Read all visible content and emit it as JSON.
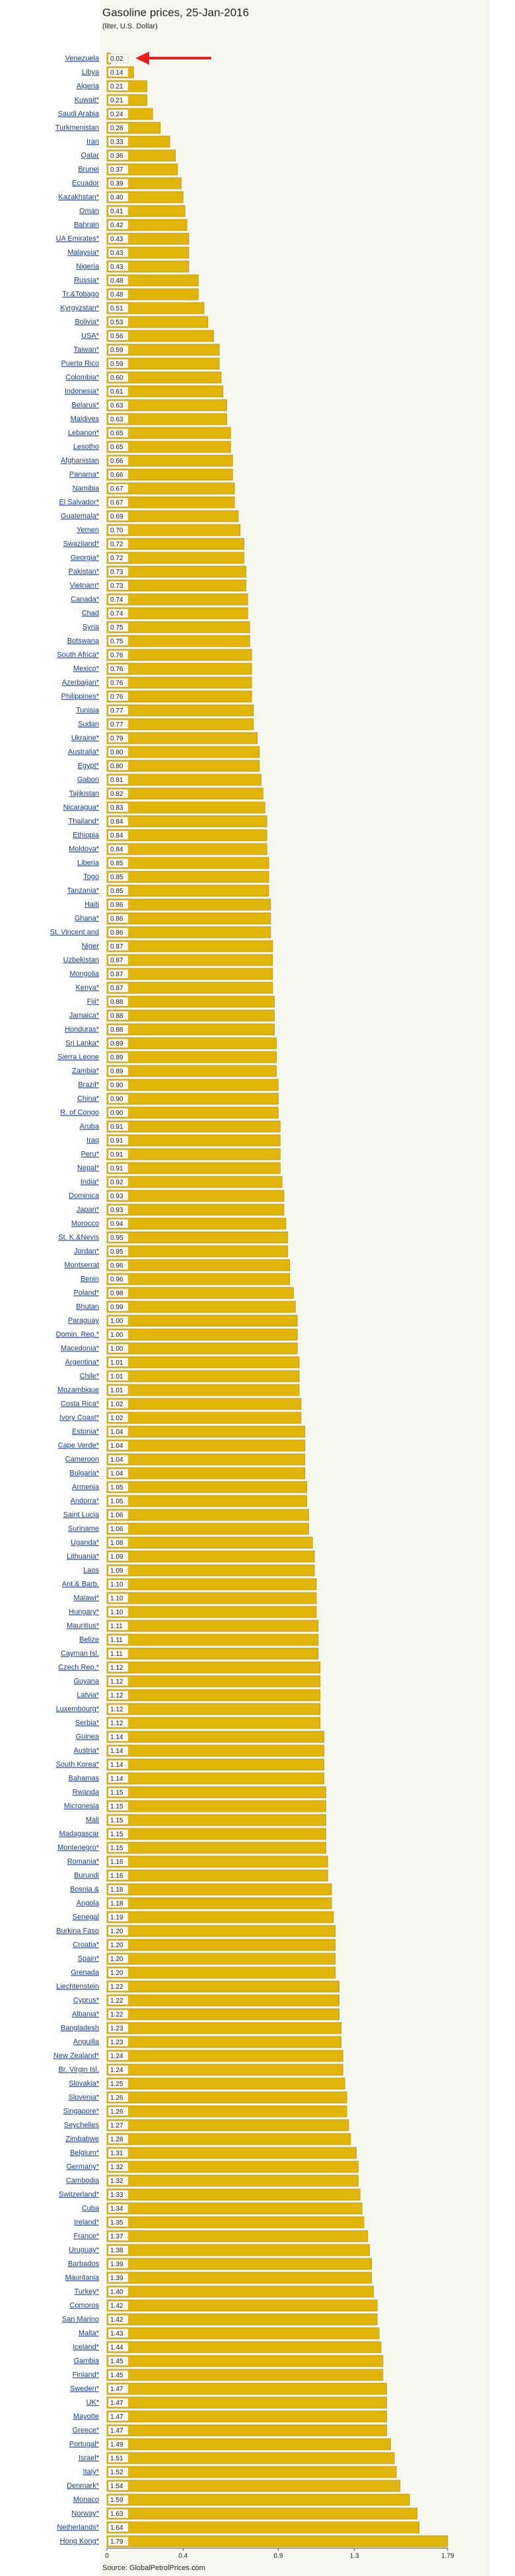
{
  "chart_data": {
    "type": "barh",
    "title": "Gasoline prices, 25-Jan-2016",
    "subtitle": "(liter, U.S. Dollar)",
    "source": "Source: GlobalPetrolPrices.com",
    "color": "#e2b50a",
    "categories": [
      "Venezuela",
      "Libya",
      "Algeria",
      "Kuwait*",
      "Saudi Arabia",
      "Turkmenistan",
      "Iran",
      "Qatar",
      "Brunei",
      "Ecuador",
      "Kazakhstan*",
      "Oman",
      "Bahrain",
      "UA Emirates*",
      "Malaysia*",
      "Nigeria",
      "Russia*",
      "Tr.&Tobago",
      "Kyrgyzstan*",
      "Bolivia*",
      "USA*",
      "Taiwan*",
      "Puerto Rico",
      "Colombia*",
      "Indonesia*",
      "Belarus*",
      "Maldives",
      "Lebanon*",
      "Lesotho",
      "Afghanistan",
      "Panama*",
      "Namibia",
      "El Salvador*",
      "Guatemala*",
      "Yemen",
      "Swaziland*",
      "Georgia*",
      "Pakistan*",
      "Vietnam*",
      "Canada*",
      "Chad",
      "Syria",
      "Botswana",
      "South Africa*",
      "Mexico*",
      "Azerbaijan*",
      "Philippines*",
      "Tunisia",
      "Sudan",
      "Ukraine*",
      "Australia*",
      "Egypt*",
      "Gabon",
      "Tajikistan",
      "Nicaragua*",
      "Thailand*",
      "Ethiopia",
      "Moldova*",
      "Liberia",
      "Togo",
      "Tanzania*",
      "Haiti",
      "Ghana*",
      "St. Vincent and",
      "Niger",
      "Uzbekistan",
      "Mongolia",
      "Kenya*",
      "Fiji*",
      "Jamaica*",
      "Honduras*",
      "Sri Lanka*",
      "Sierra Leone",
      "Zambia*",
      "Brazil*",
      "China*",
      "R. of Congo",
      "Aruba",
      "Iraq",
      "Peru*",
      "Nepal*",
      "India*",
      "Dominica",
      "Japan*",
      "Morocco",
      "St. K.&Nevis",
      "Jordan*",
      "Montserrat",
      "Benin",
      "Poland*",
      "Bhutan",
      "Paraguay",
      "Domin. Rep.*",
      "Macedonia*",
      "Argentina*",
      "Chile*",
      "Mozambique",
      "Costa Rica*",
      "Ivory Coast*",
      "Estonia*",
      "Cape Verde*",
      "Cameroon",
      "Bulgaria*",
      "Armenia",
      "Andorra*",
      "Saint Lucia",
      "Suriname",
      "Uganda*",
      "Lithuania*",
      "Laos",
      "Ant.& Barb.",
      "Malawi*",
      "Hungary*",
      "Mauritius*",
      "Belize",
      "Cayman Isl.",
      "Czech Rep.*",
      "Guyana",
      "Latvia*",
      "Luxembourg*",
      "Serbia*",
      "Guinea",
      "Austria*",
      "South Korea*",
      "Bahamas",
      "Rwanda",
      "Micronesia",
      "Mali",
      "Madagascar",
      "Montenegro*",
      "Romania*",
      "Burundi",
      "Bosnia &",
      "Angola",
      "Senegal",
      "Burkina Faso",
      "Croatia*",
      "Spain*",
      "Grenada",
      "Liechtenstein",
      "Cyprus*",
      "Albania*",
      "Bangladesh",
      "Anguilla",
      "New Zealand*",
      "Br. Virgin Isl.",
      "Slovakia*",
      "Slovenia*",
      "Singapore*",
      "Seychelles",
      "Zimbabwe",
      "Belgium*",
      "Germany*",
      "Cambodia",
      "Switzerland*",
      "Cuba",
      "Ireland*",
      "France*",
      "Uruguay*",
      "Barbados",
      "Mauritania",
      "Turkey*",
      "Comoros",
      "San Marino",
      "Malta*",
      "Iceland*",
      "Gambia",
      "Finland*",
      "Sweden*",
      "UK*",
      "Mayotte",
      "Greece*",
      "Portugal*",
      "Israel*",
      "Italy*",
      "Denmark*",
      "Monaco",
      "Norway*",
      "Netherlands*",
      "Hong Kong*"
    ],
    "values": [
      0.02,
      0.14,
      0.21,
      0.21,
      0.24,
      0.28,
      0.33,
      0.36,
      0.37,
      0.39,
      0.4,
      0.41,
      0.42,
      0.43,
      0.43,
      0.43,
      0.48,
      0.48,
      0.51,
      0.53,
      0.56,
      0.59,
      0.59,
      0.6,
      0.61,
      0.63,
      0.63,
      0.65,
      0.65,
      0.66,
      0.66,
      0.67,
      0.67,
      0.69,
      0.7,
      0.72,
      0.72,
      0.73,
      0.73,
      0.74,
      0.74,
      0.75,
      0.75,
      0.76,
      0.76,
      0.76,
      0.76,
      0.77,
      0.77,
      0.79,
      0.8,
      0.8,
      0.81,
      0.82,
      0.83,
      0.84,
      0.84,
      0.84,
      0.85,
      0.85,
      0.85,
      0.86,
      0.86,
      0.86,
      0.87,
      0.87,
      0.87,
      0.87,
      0.88,
      0.88,
      0.88,
      0.89,
      0.89,
      0.89,
      0.9,
      0.9,
      0.9,
      0.91,
      0.91,
      0.91,
      0.91,
      0.92,
      0.93,
      0.93,
      0.94,
      0.95,
      0.95,
      0.96,
      0.96,
      0.98,
      0.99,
      1.0,
      1.0,
      1.0,
      1.01,
      1.01,
      1.01,
      1.02,
      1.02,
      1.04,
      1.04,
      1.04,
      1.04,
      1.05,
      1.05,
      1.06,
      1.06,
      1.08,
      1.09,
      1.09,
      1.1,
      1.1,
      1.1,
      1.11,
      1.11,
      1.11,
      1.12,
      1.12,
      1.12,
      1.12,
      1.12,
      1.14,
      1.14,
      1.14,
      1.14,
      1.15,
      1.15,
      1.15,
      1.15,
      1.15,
      1.16,
      1.16,
      1.18,
      1.18,
      1.19,
      1.2,
      1.2,
      1.2,
      1.2,
      1.22,
      1.22,
      1.22,
      1.23,
      1.23,
      1.24,
      1.24,
      1.25,
      1.26,
      1.26,
      1.27,
      1.28,
      1.31,
      1.32,
      1.32,
      1.33,
      1.34,
      1.35,
      1.37,
      1.38,
      1.39,
      1.39,
      1.4,
      1.42,
      1.42,
      1.43,
      1.44,
      1.45,
      1.45,
      1.47,
      1.47,
      1.47,
      1.47,
      1.49,
      1.51,
      1.52,
      1.54,
      1.59,
      1.63,
      1.64,
      1.79
    ],
    "value_labels": [
      "0.02",
      "0.14",
      "0.21",
      "0.21",
      "0.24",
      "0.28",
      "0.33",
      "0.36",
      "0.37",
      "0.39",
      "0.40",
      "0.41",
      "0.42",
      "0.43",
      "0.43",
      "0.43",
      "0.48",
      "0.48",
      "0.51",
      "0.53",
      "0.56",
      "0.59",
      "0.59",
      "0.60",
      "0.61",
      "0.63",
      "0.63",
      "0.65",
      "0.65",
      "0.66",
      "0.66",
      "0.67",
      "0.67",
      "0.69",
      "0.70",
      "0.72",
      "0.72",
      "0.73",
      "0.73",
      "0.74",
      "0.74",
      "0.75",
      "0.75",
      "0.76",
      "0.76",
      "0.76",
      "0.76",
      "0.77",
      "0.77",
      "0.79",
      "0.80",
      "0.80",
      "0.81",
      "0.82",
      "0.83",
      "0.84",
      "0.84",
      "0.84",
      "0.85",
      "0.85",
      "0.85",
      "0.86",
      "0.86",
      "0.86",
      "0.87",
      "0.87",
      "0.87",
      "0.87",
      "0.88",
      "0.88",
      "0.88",
      "0.89",
      "0.89",
      "0.89",
      "0.90",
      "0.90",
      "0.90",
      "0.91",
      "0.91",
      "0.91",
      "0.91",
      "0.92",
      "0.93",
      "0.93",
      "0.94",
      "0.95",
      "0.95",
      "0.96",
      "0.96",
      "0.98",
      "0.99",
      "1.00",
      "1.00",
      "1.00",
      "1.01",
      "1.01",
      "1.01",
      "1.02",
      "1.02",
      "1.04",
      "1.04",
      "1.04",
      "1.04",
      "1.05",
      "1.05",
      "1.06",
      "1.06",
      "1.08",
      "1.09",
      "1.09",
      "1.10",
      "1.10",
      "1.10",
      "1.11",
      "1.11",
      "1.11",
      "1.12",
      "1.12",
      "1.12",
      "1.12",
      "1.12",
      "1.14",
      "1.14",
      "1.14",
      "1.14",
      "1.15",
      "1.15",
      "1.15",
      "1.15",
      "1.15",
      "1.16",
      "1.16",
      "1.18",
      "1.18",
      "1.19",
      "1.20",
      "1.20",
      "1.20",
      "1.20",
      "1.22",
      "1.22",
      "1.22",
      "1.23",
      "1.23",
      "1.24",
      "1.24",
      "1.25",
      "1.26",
      "1.26",
      "1.27",
      "1.28",
      "1.31",
      "1.32",
      "1.32",
      "1.33",
      "1.34",
      "1.35",
      "1.37",
      "1.38",
      "1.39",
      "1.39",
      "1.40",
      "1.42",
      "1.42",
      "1.43",
      "1.44",
      "1.45",
      "1.45",
      "1.47",
      "1.47",
      "1.47",
      "1.47",
      "1.49",
      "1.51",
      "1.52",
      "1.54",
      "1.59",
      "1.63",
      "1.64",
      "1.79"
    ],
    "xlim": [
      0,
      1.79
    ],
    "xticks": [
      0,
      0.4,
      0.9,
      1.3,
      1.79
    ]
  }
}
